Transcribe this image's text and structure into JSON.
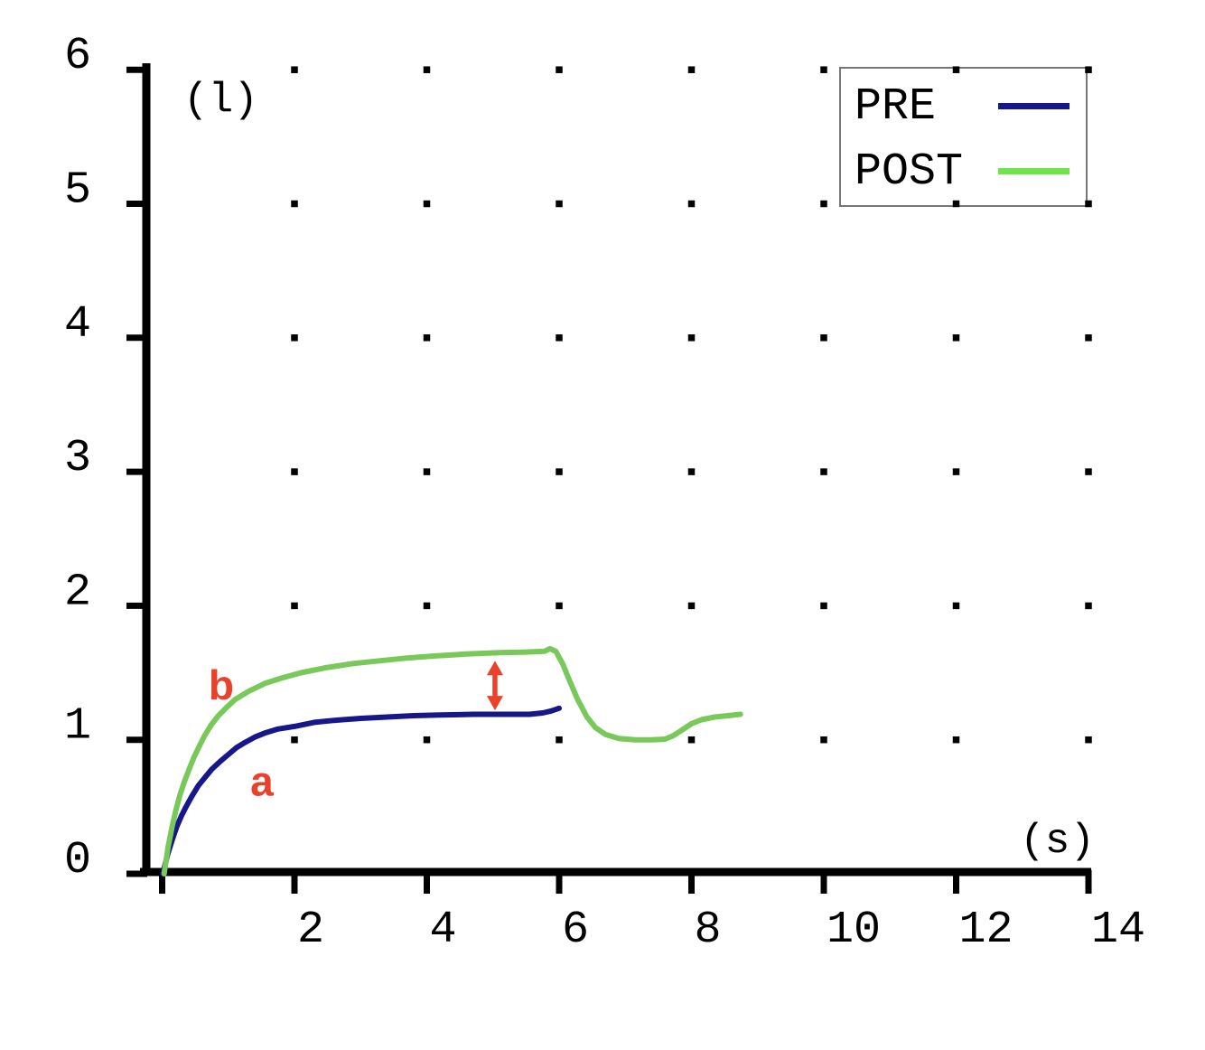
{
  "chart_data": {
    "type": "line",
    "title": "",
    "xlabel": "(s)",
    "ylabel": "(l)",
    "xlim": [
      0,
      14
    ],
    "ylim": [
      0,
      6
    ],
    "axis_color": "#000000",
    "grid": "dot markers at intersections of even x (2-14) and integer y (1-6)",
    "x_axis": {
      "unit_label": "(s)",
      "tick_marks": [
        0,
        2,
        4,
        6,
        8,
        10,
        12,
        14
      ],
      "tick_labels": [
        {
          "at": 2,
          "text": "2"
        },
        {
          "at": 4,
          "text": "4"
        },
        {
          "at": 6,
          "text": "6"
        },
        {
          "at": 8,
          "text": "8"
        },
        {
          "at": 10,
          "text": "10"
        },
        {
          "at": 12,
          "text": "12"
        },
        {
          "at": 14,
          "text": "14"
        }
      ]
    },
    "y_axis": {
      "unit_label": "(l)",
      "tick_marks": [
        0,
        1,
        2,
        3,
        4,
        5,
        6
      ],
      "tick_labels": [
        {
          "at": 0,
          "text": "0"
        },
        {
          "at": 1,
          "text": "1"
        },
        {
          "at": 2,
          "text": "2"
        },
        {
          "at": 3,
          "text": "3"
        },
        {
          "at": 4,
          "text": "4"
        },
        {
          "at": 5,
          "text": "5"
        },
        {
          "at": 6,
          "text": "6"
        }
      ]
    },
    "grid_dots": {
      "x_values": [
        2,
        4,
        6,
        8,
        10,
        12,
        14
      ],
      "y_values": [
        1,
        2,
        3,
        4,
        5,
        6
      ],
      "color": "#000000"
    },
    "legend": {
      "position": "upper right",
      "border_color": "#767676",
      "background": "#ffffff",
      "entries": [
        {
          "label": "PRE",
          "color": "#17178c"
        },
        {
          "label": "POST",
          "color": "#6ce74a"
        }
      ]
    },
    "series": [
      {
        "name": "PRE",
        "color": "#17178c",
        "points": [
          [
            0.01,
            0
          ],
          [
            0.08,
            0.14
          ],
          [
            0.15,
            0.25
          ],
          [
            0.22,
            0.35
          ],
          [
            0.29,
            0.43
          ],
          [
            0.36,
            0.5
          ],
          [
            0.45,
            0.58
          ],
          [
            0.55,
            0.66
          ],
          [
            0.65,
            0.72
          ],
          [
            0.75,
            0.78
          ],
          [
            0.88,
            0.84
          ],
          [
            1.0,
            0.89
          ],
          [
            1.12,
            0.94
          ],
          [
            1.25,
            0.98
          ],
          [
            1.4,
            1.02
          ],
          [
            1.55,
            1.05
          ],
          [
            1.75,
            1.08
          ],
          [
            2.0,
            1.1
          ],
          [
            2.3,
            1.13
          ],
          [
            2.6,
            1.145
          ],
          [
            3.0,
            1.16
          ],
          [
            3.4,
            1.17
          ],
          [
            3.8,
            1.18
          ],
          [
            4.2,
            1.185
          ],
          [
            4.7,
            1.19
          ],
          [
            5.2,
            1.19
          ],
          [
            5.55,
            1.19
          ],
          [
            5.75,
            1.2
          ],
          [
            5.88,
            1.215
          ],
          [
            6.0,
            1.235
          ]
        ]
      },
      {
        "name": "POST",
        "color": "#78c85a",
        "points": [
          [
            0.03,
            0
          ],
          [
            0.09,
            0.2
          ],
          [
            0.15,
            0.35
          ],
          [
            0.21,
            0.48
          ],
          [
            0.27,
            0.59
          ],
          [
            0.33,
            0.68
          ],
          [
            0.4,
            0.77
          ],
          [
            0.48,
            0.87
          ],
          [
            0.56,
            0.95
          ],
          [
            0.64,
            1.03
          ],
          [
            0.74,
            1.11
          ],
          [
            0.85,
            1.18
          ],
          [
            0.95,
            1.23
          ],
          [
            1.1,
            1.3
          ],
          [
            1.3,
            1.36
          ],
          [
            1.55,
            1.42
          ],
          [
            1.8,
            1.46
          ],
          [
            2.1,
            1.5
          ],
          [
            2.5,
            1.54
          ],
          [
            2.9,
            1.57
          ],
          [
            3.3,
            1.59
          ],
          [
            3.7,
            1.61
          ],
          [
            4.1,
            1.625
          ],
          [
            4.6,
            1.64
          ],
          [
            5.1,
            1.65
          ],
          [
            5.5,
            1.655
          ],
          [
            5.78,
            1.66
          ],
          [
            5.86,
            1.68
          ],
          [
            5.95,
            1.66
          ],
          [
            6.05,
            1.57
          ],
          [
            6.15,
            1.45
          ],
          [
            6.28,
            1.3
          ],
          [
            6.42,
            1.17
          ],
          [
            6.55,
            1.09
          ],
          [
            6.7,
            1.04
          ],
          [
            6.9,
            1.01
          ],
          [
            7.15,
            1.0
          ],
          [
            7.4,
            1.0
          ],
          [
            7.6,
            1.005
          ],
          [
            7.72,
            1.03
          ],
          [
            7.85,
            1.07
          ],
          [
            8.0,
            1.12
          ],
          [
            8.15,
            1.15
          ],
          [
            8.35,
            1.17
          ],
          [
            8.55,
            1.18
          ],
          [
            8.74,
            1.19
          ]
        ]
      }
    ],
    "annotations": [
      {
        "kind": "text",
        "text": "b",
        "x": 0.894,
        "y": 1.41,
        "color": "#e8422a"
      },
      {
        "kind": "text",
        "text": "a",
        "x": 1.508,
        "y": 0.69,
        "color": "#e8422a"
      },
      {
        "kind": "double_arrow",
        "x": 5.03,
        "y_from": 1.22,
        "y_to": 1.59,
        "color": "#e8422a"
      }
    ]
  }
}
